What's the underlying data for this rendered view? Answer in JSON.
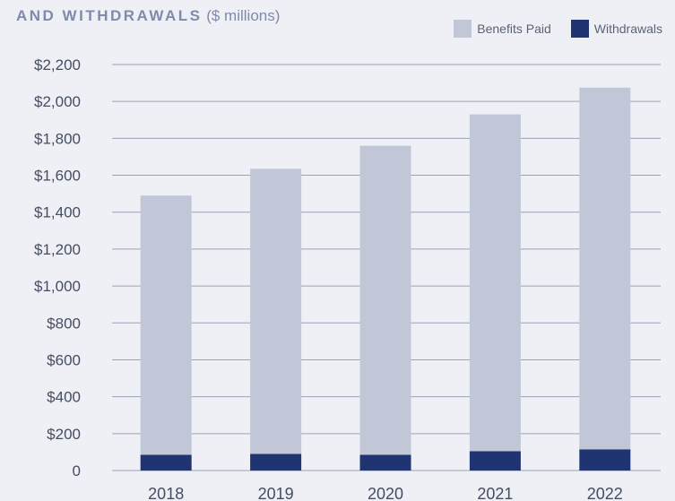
{
  "chart_data": {
    "type": "bar",
    "stacked": true,
    "title": "AND WITHDRAWALS",
    "title_unit": "($ millions)",
    "categories": [
      "2018",
      "2019",
      "2020",
      "2021",
      "2022"
    ],
    "series": [
      {
        "name": "Withdrawals",
        "values": [
          85,
          90,
          85,
          105,
          115
        ],
        "color": "#1f3471"
      },
      {
        "name": "Benefits Paid",
        "values": [
          1405,
          1545,
          1675,
          1825,
          1960
        ],
        "color": "#c2c7d8"
      }
    ],
    "legend_order": [
      "Benefits Paid",
      "Withdrawals"
    ],
    "legend_position": "top-right",
    "ylim": [
      0,
      2200
    ],
    "yticks": [
      {
        "value": 0,
        "label": "0"
      },
      {
        "value": 200,
        "label": "$200"
      },
      {
        "value": 400,
        "label": "$400"
      },
      {
        "value": 600,
        "label": "$600"
      },
      {
        "value": 800,
        "label": "$800"
      },
      {
        "value": 1000,
        "label": "$1,000"
      },
      {
        "value": 1200,
        "label": "$1,200"
      },
      {
        "value": 1400,
        "label": "$1,400"
      },
      {
        "value": 1600,
        "label": "$1,600"
      },
      {
        "value": 1800,
        "label": "$1,800"
      },
      {
        "value": 2000,
        "label": "$2,000"
      },
      {
        "value": 2200,
        "label": "$2,200"
      }
    ],
    "grid": true,
    "colors": {
      "grid": "#9aa2b8",
      "background": "#eef0f5"
    }
  }
}
